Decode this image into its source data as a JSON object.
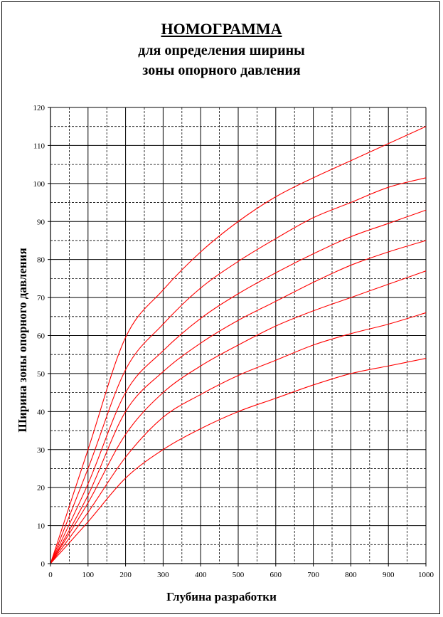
{
  "title": {
    "line1": "НОМОГРАММА",
    "line2": "для определения ширины",
    "line3": "зоны опорного давления"
  },
  "chart_data": {
    "type": "line",
    "xlabel": "Глубина разработки",
    "ylabel": "Ширина зоны опорного давления",
    "xlim": [
      0,
      1000
    ],
    "ylim": [
      0,
      120
    ],
    "x_ticks": [
      0,
      100,
      200,
      300,
      400,
      500,
      600,
      700,
      800,
      900,
      1000
    ],
    "y_ticks": [
      0,
      10,
      20,
      30,
      40,
      50,
      60,
      70,
      80,
      90,
      100,
      110,
      120
    ],
    "x_minor_step": 50,
    "y_minor_step": 5,
    "grid": true,
    "legend": "none",
    "line_color": "#ff0000",
    "x": [
      0,
      100,
      200,
      300,
      400,
      500,
      600,
      700,
      800,
      900,
      1000
    ],
    "series": [
      {
        "values": [
          0,
          30,
          59.5,
          72,
          82,
          90,
          96.5,
          101.5,
          106,
          110.5,
          115
        ]
      },
      {
        "values": [
          0,
          25,
          51,
          63,
          72.5,
          79.5,
          85.5,
          91,
          95,
          99,
          101.5
        ]
      },
      {
        "values": [
          0,
          21,
          45,
          56,
          64.5,
          71,
          76.5,
          81.5,
          86,
          89.5,
          93
        ]
      },
      {
        "values": [
          0,
          18,
          40,
          50.5,
          58,
          64,
          69,
          74,
          78.5,
          82,
          85
        ]
      },
      {
        "values": [
          0,
          16,
          34,
          45,
          52,
          57.5,
          62.5,
          66.5,
          70,
          73.5,
          77
        ]
      },
      {
        "values": [
          0,
          13.5,
          28,
          38.5,
          44.5,
          49.5,
          53.5,
          57.5,
          60.5,
          63,
          66
        ]
      },
      {
        "values": [
          0,
          11,
          22.5,
          30,
          35.5,
          40,
          43.5,
          47,
          50,
          52,
          54
        ]
      }
    ]
  }
}
